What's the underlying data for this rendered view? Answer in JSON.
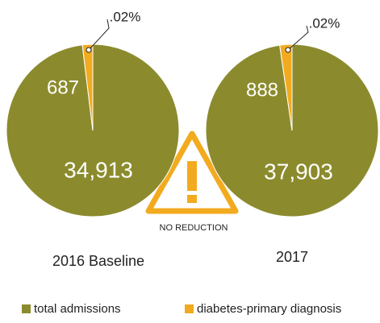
{
  "chart_data": {
    "type": "pie",
    "categories": [
      "total admissions",
      "diabetes-primary diagnosis"
    ],
    "colors": [
      "#8b8b2e",
      "#f2ab1f"
    ],
    "pies": [
      {
        "title": "2016 Baseline",
        "values": [
          34913,
          687
        ],
        "value_labels": [
          "34,913",
          "687"
        ],
        "annotation": ".02%"
      },
      {
        "title": "2017",
        "values": [
          37903,
          888
        ],
        "value_labels": [
          "37,903",
          "888"
        ],
        "annotation": ".02%"
      }
    ],
    "center_note": "NO REDUCTION"
  }
}
